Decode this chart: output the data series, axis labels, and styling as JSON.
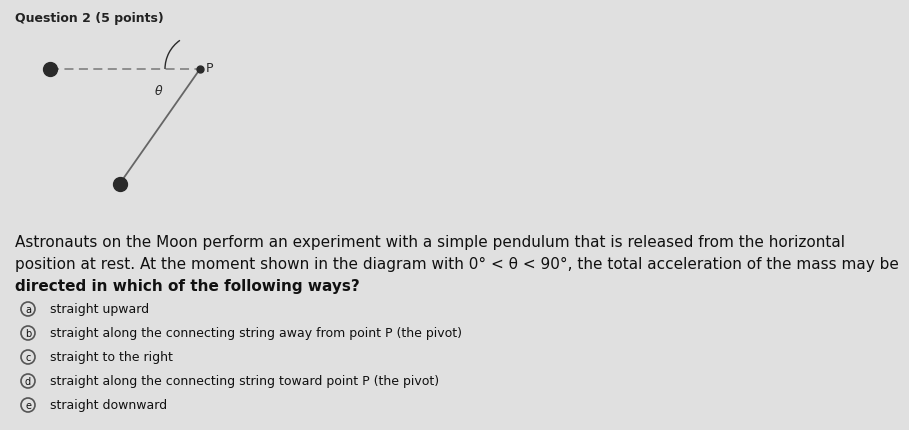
{
  "title": "Question 2 (5 points)",
  "bg_color": "#e0e0e0",
  "question_text_line1": "Astronauts on the Moon perform an experiment with a simple pendulum that is released from the horizontal",
  "question_text_line2": "position at rest. At the moment shown in the diagram with 0° < θ < 90°, the total acceleration of the mass may be",
  "question_text_line3": "directed in which of the following ways?",
  "options": [
    {
      "label": "a",
      "text": "straight upward"
    },
    {
      "label": "b",
      "text": "straight along the connecting string away from point P (the pivot)"
    },
    {
      "label": "c",
      "text": "straight to the right"
    },
    {
      "label": "d",
      "text": "straight along the connecting string toward point P (the pivot)"
    },
    {
      "label": "e",
      "text": "straight downward"
    }
  ],
  "dot_color": "#2a2a2a",
  "line_color": "#666666",
  "dashed_color": "#888888",
  "theta_label": "θ",
  "font_size_title": 9,
  "font_size_text": 11,
  "font_size_options": 9
}
